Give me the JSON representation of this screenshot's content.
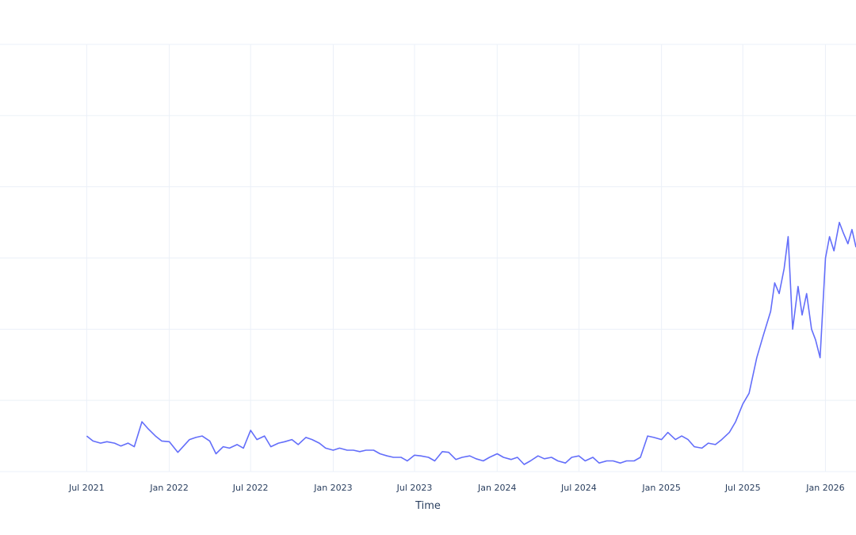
{
  "chart_data": {
    "type": "line",
    "xlabel": "Time",
    "ylabel": "",
    "x_axis_type": "date",
    "xlim": [
      "2020-12-20",
      "2026-03-10"
    ],
    "ylim": [
      0,
      6
    ],
    "grid": true,
    "legend": "none",
    "series_color": "#636efa",
    "grid_color": "#ebf0f8",
    "text_color": "#2a3f5f",
    "x_ticks": [
      {
        "date": "2021-07-01",
        "label": "Jul 2021"
      },
      {
        "date": "2022-01-01",
        "label": "Jan 2022"
      },
      {
        "date": "2022-07-01",
        "label": "Jul 2022"
      },
      {
        "date": "2023-01-01",
        "label": "Jan 2023"
      },
      {
        "date": "2023-07-01",
        "label": "Jul 2023"
      },
      {
        "date": "2024-01-01",
        "label": "Jan 2024"
      },
      {
        "date": "2024-07-01",
        "label": "Jul 2024"
      },
      {
        "date": "2025-01-01",
        "label": "Jan 2025"
      },
      {
        "date": "2025-07-01",
        "label": "Jul 2025"
      },
      {
        "date": "2026-01-01",
        "label": "Jan 2026"
      }
    ],
    "y_gridlines": [
      0,
      1,
      2,
      3,
      4,
      5,
      6
    ],
    "series": [
      {
        "x": [
          "2021-07-01",
          "2021-07-15",
          "2021-08-01",
          "2021-08-15",
          "2021-09-01",
          "2021-09-15",
          "2021-10-01",
          "2021-10-15",
          "2021-11-01",
          "2021-11-15",
          "2021-12-01",
          "2021-12-15",
          "2022-01-01",
          "2022-01-20",
          "2022-02-15",
          "2022-03-01",
          "2022-03-15",
          "2022-04-01",
          "2022-04-15",
          "2022-05-01",
          "2022-05-15",
          "2022-06-01",
          "2022-06-15",
          "2022-07-01",
          "2022-07-15",
          "2022-08-01",
          "2022-08-15",
          "2022-09-01",
          "2022-09-15",
          "2022-10-01",
          "2022-10-15",
          "2022-11-01",
          "2022-11-15",
          "2022-12-01",
          "2022-12-15",
          "2023-01-01",
          "2023-01-15",
          "2023-02-01",
          "2023-02-15",
          "2023-03-01",
          "2023-03-15",
          "2023-04-01",
          "2023-04-15",
          "2023-05-01",
          "2023-05-15",
          "2023-06-01",
          "2023-06-15",
          "2023-07-01",
          "2023-07-15",
          "2023-08-01",
          "2023-08-15",
          "2023-09-01",
          "2023-09-15",
          "2023-10-01",
          "2023-10-15",
          "2023-11-01",
          "2023-11-15",
          "2023-12-01",
          "2023-12-15",
          "2024-01-01",
          "2024-01-15",
          "2024-02-01",
          "2024-02-15",
          "2024-03-01",
          "2024-03-15",
          "2024-04-01",
          "2024-04-15",
          "2024-05-01",
          "2024-05-15",
          "2024-06-01",
          "2024-06-15",
          "2024-07-01",
          "2024-07-15",
          "2024-08-01",
          "2024-08-15",
          "2024-09-01",
          "2024-09-15",
          "2024-10-01",
          "2024-10-15",
          "2024-11-01",
          "2024-11-15",
          "2024-12-01",
          "2024-12-15",
          "2025-01-01",
          "2025-01-15",
          "2025-02-01",
          "2025-02-15",
          "2025-03-01",
          "2025-03-15",
          "2025-04-01",
          "2025-04-15",
          "2025-05-01",
          "2025-05-15",
          "2025-06-01",
          "2025-06-15",
          "2025-07-01",
          "2025-07-15",
          "2025-08-01",
          "2025-08-15",
          "2025-09-01",
          "2025-09-10",
          "2025-09-20",
          "2025-10-01",
          "2025-10-10",
          "2025-10-20",
          "2025-11-01",
          "2025-11-10",
          "2025-11-20",
          "2025-12-01",
          "2025-12-10",
          "2025-12-20",
          "2026-01-01",
          "2026-01-10",
          "2026-01-20",
          "2026-02-01",
          "2026-02-10",
          "2026-02-20",
          "2026-03-01",
          "2026-03-10"
        ],
        "y": [
          0.5,
          0.43,
          0.4,
          0.42,
          0.4,
          0.36,
          0.4,
          0.35,
          0.7,
          0.6,
          0.5,
          0.43,
          0.42,
          0.27,
          0.45,
          0.48,
          0.5,
          0.43,
          0.25,
          0.35,
          0.33,
          0.38,
          0.33,
          0.58,
          0.45,
          0.5,
          0.35,
          0.4,
          0.42,
          0.45,
          0.38,
          0.48,
          0.45,
          0.4,
          0.33,
          0.3,
          0.33,
          0.3,
          0.3,
          0.28,
          0.3,
          0.3,
          0.25,
          0.22,
          0.2,
          0.2,
          0.15,
          0.23,
          0.22,
          0.2,
          0.15,
          0.28,
          0.27,
          0.17,
          0.2,
          0.22,
          0.18,
          0.15,
          0.2,
          0.25,
          0.2,
          0.17,
          0.2,
          0.1,
          0.15,
          0.22,
          0.18,
          0.2,
          0.15,
          0.12,
          0.2,
          0.22,
          0.15,
          0.2,
          0.12,
          0.15,
          0.15,
          0.12,
          0.15,
          0.15,
          0.2,
          0.5,
          0.48,
          0.45,
          0.55,
          0.45,
          0.5,
          0.45,
          0.35,
          0.33,
          0.4,
          0.38,
          0.45,
          0.55,
          0.7,
          0.95,
          1.1,
          1.6,
          1.9,
          2.25,
          2.65,
          2.5,
          2.85,
          3.3,
          2.0,
          2.6,
          2.2,
          2.5,
          2.0,
          1.85,
          1.6,
          3.0,
          3.3,
          3.1,
          3.5,
          3.35,
          3.2,
          3.4,
          3.15
        ]
      }
    ]
  }
}
